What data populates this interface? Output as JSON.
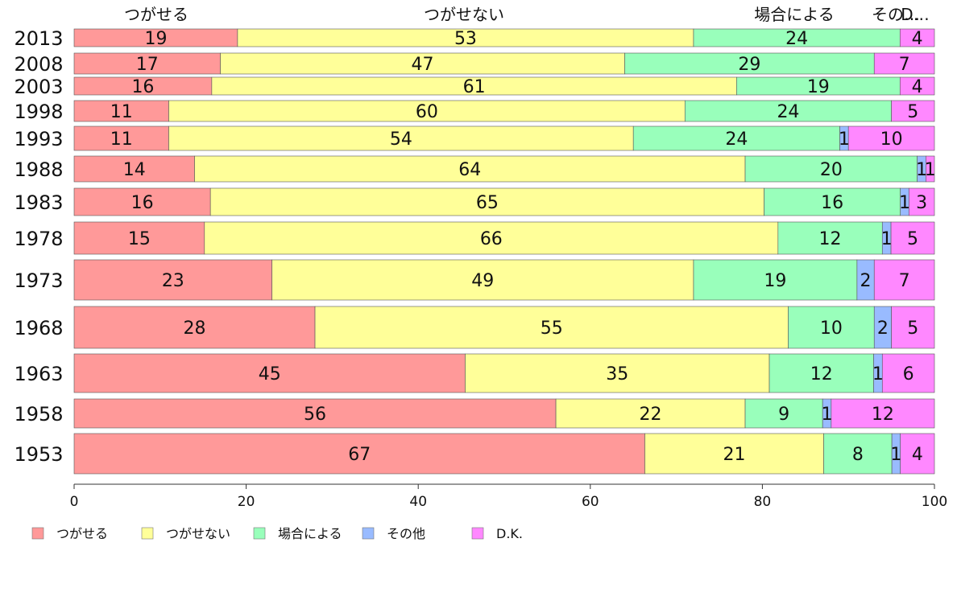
{
  "chart_data": {
    "type": "bar",
    "orientation": "horizontal",
    "stacked": true,
    "title": "",
    "xlabel": "",
    "ylabel": "",
    "xlim": [
      0,
      100
    ],
    "x_ticks": [
      "0",
      "20",
      "40",
      "60",
      "80",
      "100"
    ],
    "legend_position": "bottom",
    "bar_widths": "proportional to sample size",
    "top_labels": [
      "つがせる",
      "つがせない",
      "場合による",
      "その…",
      "D…"
    ],
    "categories": [
      "2013",
      "2008",
      "2003",
      "1998",
      "1993",
      "1988",
      "1983",
      "1978",
      "1973",
      "1968",
      "1963",
      "1958",
      "1953"
    ],
    "series": [
      {
        "name": "つがせる",
        "color": "#ff9999",
        "values": [
          19,
          17,
          16,
          11,
          11,
          14,
          16,
          15,
          23,
          28,
          45,
          56,
          67
        ]
      },
      {
        "name": "つがせない",
        "color": "#ffff99",
        "values": [
          53,
          47,
          61,
          60,
          54,
          64,
          65,
          66,
          49,
          55,
          35,
          22,
          21
        ]
      },
      {
        "name": "場合による",
        "color": "#99ffbb",
        "values": [
          24,
          29,
          19,
          24,
          24,
          20,
          16,
          12,
          19,
          10,
          12,
          9,
          8
        ]
      },
      {
        "name": "その他",
        "color": "#99bbff",
        "values": [
          0,
          0,
          0,
          0,
          1,
          1,
          1,
          1,
          2,
          2,
          1,
          1,
          1
        ]
      },
      {
        "name": "D.K.",
        "color": "#ff88ff",
        "values": [
          4,
          7,
          4,
          5,
          10,
          1,
          3,
          5,
          7,
          5,
          6,
          12,
          4
        ]
      }
    ]
  }
}
